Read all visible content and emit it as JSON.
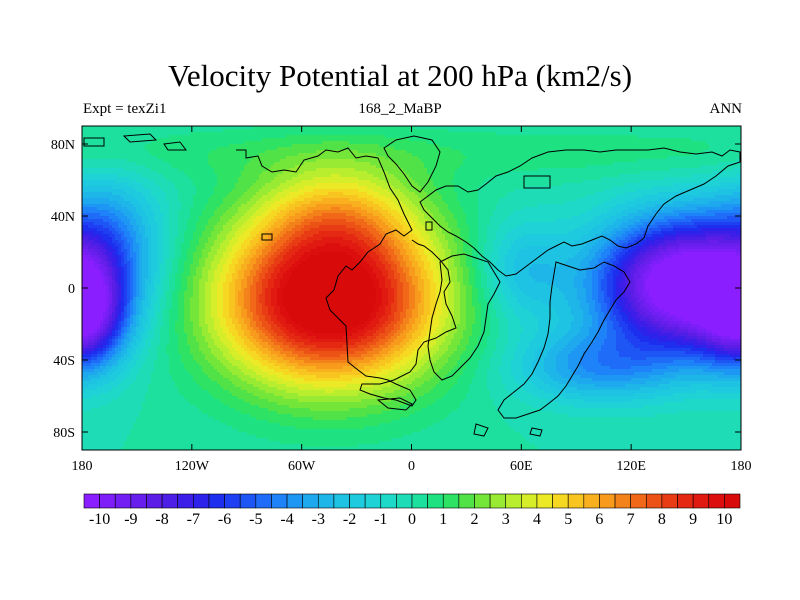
{
  "plot": {
    "title": "Velocity Potential at 200 hPa (km2/s)",
    "left_string": "Expt = texZi1",
    "center_string": "168_2_MaBP",
    "right_string": "ANN"
  },
  "chart_data": {
    "type": "heatmap",
    "projection": "cylindrical-equidistant",
    "variable": "velocity potential",
    "level": "200 hPa",
    "units": "km2/s",
    "x_ticks": [
      {
        "lon": -180,
        "label": "180"
      },
      {
        "lon": -120,
        "label": "120W"
      },
      {
        "lon": -60,
        "label": "60W"
      },
      {
        "lon": 0,
        "label": "0"
      },
      {
        "lon": 60,
        "label": "60E"
      },
      {
        "lon": 120,
        "label": "120E"
      },
      {
        "lon": 180,
        "label": "180"
      }
    ],
    "y_ticks": [
      {
        "lat": 80,
        "label": "80N"
      },
      {
        "lat": 40,
        "label": "40N"
      },
      {
        "lat": 0,
        "label": "0"
      },
      {
        "lat": -40,
        "label": "40S"
      },
      {
        "lat": -80,
        "label": "80S"
      }
    ],
    "xlim": [
      -180,
      180
    ],
    "ylim": [
      -90,
      90
    ],
    "approx_features": [
      {
        "lon": -45,
        "lat": -5,
        "value": 10
      },
      {
        "lon": 150,
        "lat": 0,
        "value": -10
      },
      {
        "lon": -180,
        "lat": -15,
        "value": -10
      }
    ],
    "colorbar": {
      "vmin": -10.5,
      "vmax": 10.5,
      "step": 0.5,
      "labels": [
        "-10",
        "-9",
        "-8",
        "-7",
        "-6",
        "-5",
        "-4",
        "-3",
        "-2",
        "-1",
        "0",
        "1",
        "2",
        "3",
        "4",
        "5",
        "6",
        "7",
        "8",
        "9",
        "10"
      ],
      "colors": [
        "#8a1eff",
        "#7e1ef8",
        "#731ef2",
        "#681eec",
        "#5c1ee6",
        "#4c1ee6",
        "#3c1ee8",
        "#2d22ea",
        "#1e2eee",
        "#1e40f2",
        "#1e56f6",
        "#1e6cf8",
        "#1e82f8",
        "#1e96f4",
        "#1ea8ee",
        "#1eb6e8",
        "#1ec2e2",
        "#1ecade",
        "#1ed2d6",
        "#1ed8c8",
        "#1edcb6",
        "#1ee09e",
        "#1ee282",
        "#2ee264",
        "#50e246",
        "#74e63a",
        "#98ea32",
        "#b8ee2e",
        "#d6ee2a",
        "#ecea26",
        "#f6d822",
        "#f8c420",
        "#f8b01e",
        "#f89a1c",
        "#f4821a",
        "#f06818",
        "#ec5216",
        "#e83c14",
        "#e42812",
        "#e01a10",
        "#dc0e0e",
        "#d80a0a"
      ]
    }
  }
}
